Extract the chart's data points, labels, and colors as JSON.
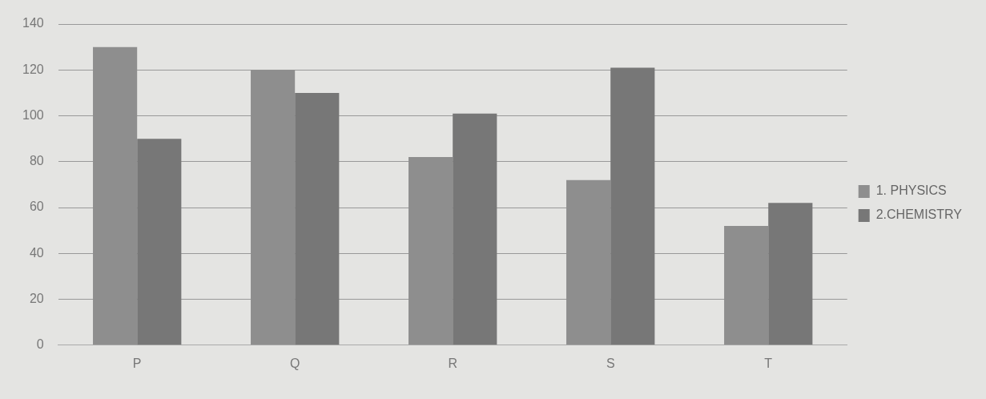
{
  "chart_data": {
    "type": "bar",
    "categories": [
      "P",
      "Q",
      "R",
      "S",
      "T"
    ],
    "series": [
      {
        "name": "1. PHYSICS",
        "color": "#8e8e8e",
        "values": [
          130,
          120,
          82,
          72,
          52
        ]
      },
      {
        "name": "2.CHEMISTRY",
        "color": "#777777",
        "values": [
          90,
          110,
          101,
          121,
          62
        ]
      }
    ],
    "ylim": [
      0,
      140
    ],
    "yticks": [
      0,
      20,
      40,
      60,
      80,
      100,
      120,
      140
    ],
    "grid": "y",
    "legend": "right"
  }
}
